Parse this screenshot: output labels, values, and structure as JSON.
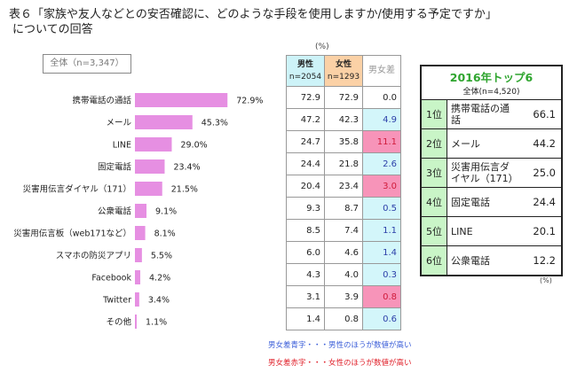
{
  "title_line1": "表６「家族や友人などとの安否確認に、どのような手段を使用しますか/使用する予定ですか」",
  "title_line2": "についての回答",
  "total_box": "全体（n=3,347）",
  "chart_data": {
    "type": "bar",
    "orientation": "horizontal",
    "title": "全体（n=3,347）",
    "categories": [
      "携帯電話の通話",
      "メール",
      "LINE",
      "固定電話",
      "災害用伝言ダイヤル（171）",
      "公衆電話",
      "災害用伝言板（web171など）",
      "スマホの防災アプリ",
      "Facebook",
      "Twitter",
      "その他"
    ],
    "values": [
      72.9,
      45.3,
      29.0,
      23.4,
      21.5,
      9.1,
      8.1,
      5.5,
      4.2,
      3.4,
      1.1
    ],
    "value_labels": [
      "72.9%",
      "45.3%",
      "29.0%",
      "23.4%",
      "21.5%",
      "9.1%",
      "8.1%",
      "5.5%",
      "4.2%",
      "3.4%",
      "1.1%"
    ],
    "unit": "%",
    "xlim": [
      0,
      100
    ],
    "bar_color": "#e68fe2",
    "grid": false
  },
  "gender_table": {
    "unit_label": "(%)",
    "headers": {
      "male": "男性",
      "male_n": "n=2054",
      "female": "女性",
      "female_n": "n=1293",
      "diff": "男女差"
    },
    "rows": [
      {
        "male": "72.9",
        "female": "72.9",
        "diff": "0.0",
        "dir": "neutral"
      },
      {
        "male": "47.2",
        "female": "42.3",
        "diff": "4.9",
        "dir": "blue"
      },
      {
        "male": "24.7",
        "female": "35.8",
        "diff": "11.1",
        "dir": "red"
      },
      {
        "male": "24.4",
        "female": "21.8",
        "diff": "2.6",
        "dir": "blue"
      },
      {
        "male": "20.4",
        "female": "23.4",
        "diff": "3.0",
        "dir": "red"
      },
      {
        "male": "9.3",
        "female": "8.7",
        "diff": "0.5",
        "dir": "blue"
      },
      {
        "male": "8.5",
        "female": "7.4",
        "diff": "1.1",
        "dir": "blue"
      },
      {
        "male": "6.0",
        "female": "4.6",
        "diff": "1.4",
        "dir": "blue"
      },
      {
        "male": "4.3",
        "female": "4.0",
        "diff": "0.3",
        "dir": "blue"
      },
      {
        "male": "3.1",
        "female": "3.9",
        "diff": "0.8",
        "dir": "red"
      },
      {
        "male": "1.4",
        "female": "0.8",
        "diff": "0.6",
        "dir": "blue"
      }
    ],
    "note_blue": "男女差青字・・・男性のほうが数値が高い",
    "note_red": "男女差赤字・・・女性のほうが数値が高い",
    "colors": {
      "male_bg": "#cdf3f8",
      "female_bg": "#fbd1a6",
      "blue_text": "#2b3fa8",
      "red_bg": "#f794b9",
      "red_text": "#d01a3a"
    }
  },
  "top6": {
    "year_title": "2016年トップ6",
    "subtitle": "全体(n=4,520)",
    "unit_label": "(%)",
    "rows": [
      {
        "rank": "1位",
        "item": "携帯電話の通話",
        "value": "66.1"
      },
      {
        "rank": "2位",
        "item": "メール",
        "value": "44.2"
      },
      {
        "rank": "3位",
        "item": "災害用伝言ダイヤル（171）",
        "value": "25.0"
      },
      {
        "rank": "4位",
        "item": "固定電話",
        "value": "24.4"
      },
      {
        "rank": "5位",
        "item": "LINE",
        "value": "20.1"
      },
      {
        "rank": "6位",
        "item": "公衆電話",
        "value": "12.2"
      }
    ],
    "colors": {
      "title": "#2fa52f",
      "rank_bg": "#c9f5c7"
    }
  }
}
